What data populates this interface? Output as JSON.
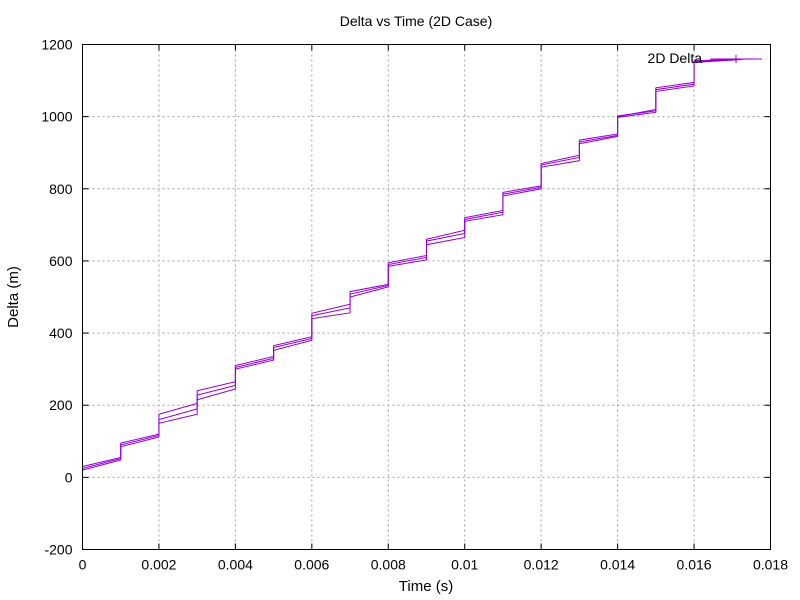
{
  "chart_data": {
    "type": "line",
    "title": "Delta vs Time (2D Case)",
    "xlabel": "Time (s)",
    "ylabel": "Delta (m)",
    "xlim": [
      0,
      0.018
    ],
    "ylim": [
      -200,
      1200
    ],
    "x_ticks": [
      "0",
      "0.002",
      "0.004",
      "0.006",
      "0.008",
      "0.01",
      "0.012",
      "0.014",
      "0.016",
      "0.018"
    ],
    "y_ticks": [
      "-200",
      "0",
      "200",
      "400",
      "600",
      "800",
      "1000",
      "1200"
    ],
    "grid": true,
    "legend_position": "top-right",
    "series_color": "#9400d3",
    "series": [
      {
        "name": "2D Delta",
        "points": [
          [
            0,
            30
          ],
          [
            0.001,
            55
          ],
          [
            0.001,
            95
          ],
          [
            0.002,
            120
          ],
          [
            0.002,
            175
          ],
          [
            0.003,
            205
          ],
          [
            0.003,
            240
          ],
          [
            0.004,
            265
          ],
          [
            0.004,
            310
          ],
          [
            0.005,
            335
          ],
          [
            0.005,
            365
          ],
          [
            0.006,
            390
          ],
          [
            0.006,
            455
          ],
          [
            0.007,
            480
          ],
          [
            0.007,
            515
          ],
          [
            0.008,
            535
          ],
          [
            0.008,
            595
          ],
          [
            0.009,
            615
          ],
          [
            0.009,
            660
          ],
          [
            0.01,
            685
          ],
          [
            0.01,
            720
          ],
          [
            0.011,
            740
          ],
          [
            0.011,
            790
          ],
          [
            0.012,
            808
          ],
          [
            0.012,
            870
          ],
          [
            0.013,
            893
          ],
          [
            0.013,
            935
          ],
          [
            0.014,
            952
          ],
          [
            0.014,
            1000
          ],
          [
            0.015,
            1020
          ],
          [
            0.015,
            1080
          ],
          [
            0.016,
            1095
          ],
          [
            0.016,
            1155
          ],
          [
            0.0175,
            1160
          ]
        ]
      },
      {
        "name": "",
        "points": [
          [
            0,
            20
          ],
          [
            0.001,
            48
          ],
          [
            0.001,
            85
          ],
          [
            0.002,
            112
          ],
          [
            0.002,
            150
          ],
          [
            0.003,
            175
          ],
          [
            0.003,
            215
          ],
          [
            0.004,
            245
          ],
          [
            0.004,
            300
          ],
          [
            0.005,
            325
          ],
          [
            0.005,
            352
          ],
          [
            0.006,
            380
          ],
          [
            0.006,
            440
          ],
          [
            0.007,
            456
          ],
          [
            0.007,
            500
          ],
          [
            0.008,
            528
          ],
          [
            0.008,
            585
          ],
          [
            0.009,
            603
          ],
          [
            0.009,
            645
          ],
          [
            0.01,
            665
          ],
          [
            0.01,
            710
          ],
          [
            0.011,
            728
          ],
          [
            0.011,
            780
          ],
          [
            0.012,
            800
          ],
          [
            0.012,
            860
          ],
          [
            0.013,
            878
          ],
          [
            0.013,
            925
          ],
          [
            0.014,
            945
          ],
          [
            0.014,
            998
          ],
          [
            0.015,
            1012
          ],
          [
            0.015,
            1070
          ],
          [
            0.016,
            1085
          ],
          [
            0.016,
            1150
          ],
          [
            0.0172,
            1158
          ]
        ]
      },
      {
        "name": "",
        "points": [
          [
            0,
            25
          ],
          [
            0.001,
            52
          ],
          [
            0.001,
            90
          ],
          [
            0.002,
            116
          ],
          [
            0.002,
            160
          ],
          [
            0.003,
            190
          ],
          [
            0.003,
            228
          ],
          [
            0.004,
            255
          ],
          [
            0.004,
            305
          ],
          [
            0.005,
            330
          ],
          [
            0.005,
            360
          ],
          [
            0.006,
            385
          ],
          [
            0.006,
            448
          ],
          [
            0.007,
            470
          ],
          [
            0.007,
            508
          ],
          [
            0.008,
            532
          ],
          [
            0.008,
            590
          ],
          [
            0.009,
            610
          ],
          [
            0.009,
            655
          ],
          [
            0.01,
            676
          ],
          [
            0.01,
            715
          ],
          [
            0.011,
            735
          ],
          [
            0.011,
            785
          ],
          [
            0.012,
            804
          ],
          [
            0.012,
            866
          ],
          [
            0.013,
            887
          ],
          [
            0.013,
            930
          ],
          [
            0.014,
            948
          ],
          [
            0.014,
            1002
          ],
          [
            0.015,
            1016
          ],
          [
            0.015,
            1075
          ],
          [
            0.016,
            1090
          ],
          [
            0.016,
            1152
          ],
          [
            0.0174,
            1160
          ]
        ]
      }
    ]
  }
}
